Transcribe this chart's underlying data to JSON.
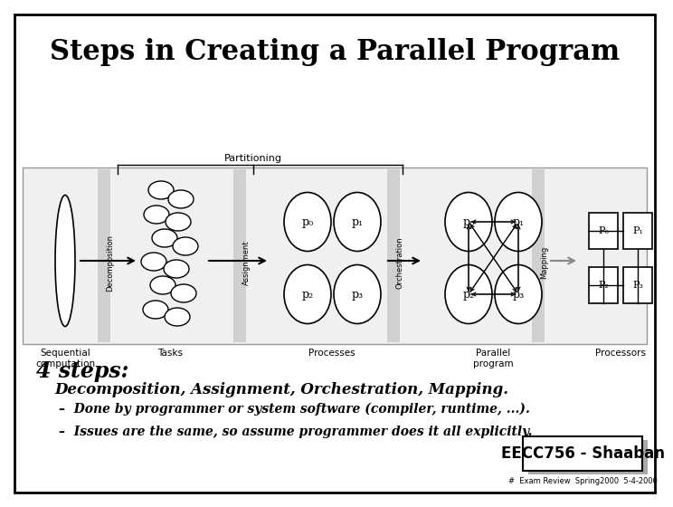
{
  "title": "Steps in Creating a Parallel Program",
  "title_fontsize": 22,
  "bg_color": "#ffffff",
  "border_color": "#000000",
  "four_steps_text": "4 steps:",
  "steps_list": "Decomposition, Assignment, Orchestration, Mapping.",
  "bullet1": "–  Done by programmer or system software (compiler, runtime, ...).",
  "bullet2": "–  Issues are the same, so assume programmer does it all explicitly.",
  "footer_box_text": "EECC756 - Shaaban",
  "footer_small_text": "#  Exam Review  Spring2000  5-4-2000",
  "partitioning_label": "Partitioning",
  "labels_below": [
    "Sequential\ncomputation",
    "Tasks",
    "Processes",
    "Parallel\nprogram",
    "Processors"
  ],
  "step_labels": [
    "Decomposition",
    "Assignment",
    "Orchestration",
    "Mapping"
  ]
}
